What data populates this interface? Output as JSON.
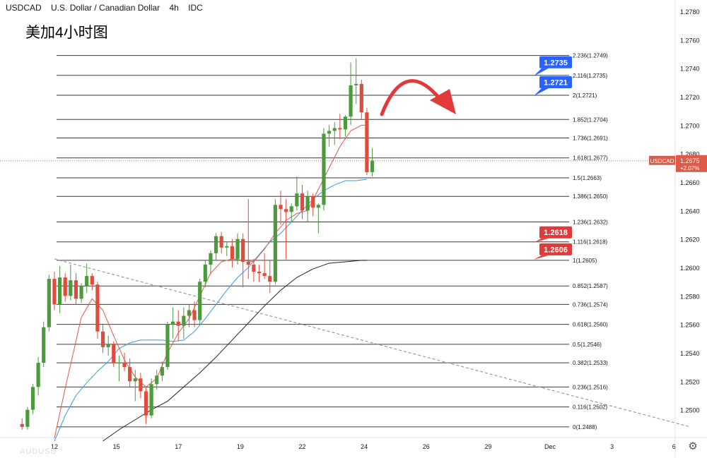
{
  "header": {
    "symbol": "USDCAD",
    "name": "U.S. Dollar / Canadian Dollar",
    "interval": "4h",
    "indicator": "IDC"
  },
  "title_cn": "美加4小时图",
  "watermark": "AUDUSD",
  "settings_icon": "gear-icon",
  "colors": {
    "up": "#4c9a3c",
    "down": "#e04b3c",
    "fib_line": "#3a3a3a",
    "ma_fast": "#e05a4a",
    "ma_mid": "#3b9ae0",
    "ma_slow": "#222222",
    "trend": "#888888",
    "arrow": "#e03a3a",
    "label_blue": "#2962ff",
    "label_red": "#e03a3a",
    "current_price": "#e05a4a"
  },
  "chart_data": {
    "type": "candlestick",
    "title": "USDCAD U.S. Dollar / Canadian Dollar 4h IDC",
    "ylim": [
      1.2478,
      1.2784
    ],
    "y_ticks": [
      1.278,
      1.276,
      1.274,
      1.272,
      1.27,
      1.268,
      1.266,
      1.264,
      1.262,
      1.26,
      1.258,
      1.256,
      1.254,
      1.252,
      1.25
    ],
    "y_tick_labels": [
      "1.2780",
      "1.2760",
      "1.2740",
      "1.2720",
      "1.2700",
      "1.2680",
      "1.2660",
      "1.2640",
      "1.2620",
      "1.2600",
      "1.2580",
      "1.2560",
      "1.2540",
      "1.2520",
      "1.2500"
    ],
    "x_labels": [
      "12",
      "15",
      "17",
      "19",
      "22",
      "24",
      "26",
      "29",
      "Dec",
      "3",
      "6"
    ],
    "x_label_slots": [
      8,
      19.5,
      31,
      42.5,
      54,
      65.5,
      77,
      88.5,
      100,
      111.5,
      123
    ],
    "slots_total": 130,
    "candles": [
      [
        1.249,
        1.2494,
        1.2486,
        1.2488
      ],
      [
        1.2488,
        1.2502,
        1.2486,
        1.25
      ],
      [
        1.25,
        1.2518,
        1.2497,
        1.2516
      ],
      [
        1.2516,
        1.2537,
        1.251,
        1.2533
      ],
      [
        1.2533,
        1.2562,
        1.253,
        1.2558
      ],
      [
        1.2558,
        1.2595,
        1.2555,
        1.2592
      ],
      [
        1.2592,
        1.2597,
        1.257,
        1.2574
      ],
      [
        1.2574,
        1.2601,
        1.2568,
        1.2593
      ],
      [
        1.2593,
        1.2596,
        1.2576,
        1.258
      ],
      [
        1.258,
        1.2602,
        1.2577,
        1.2591
      ],
      [
        1.2591,
        1.2596,
        1.2574,
        1.2578
      ],
      [
        1.2578,
        1.2589,
        1.2575,
        1.2587
      ],
      [
        1.2587,
        1.2603,
        1.2582,
        1.2594
      ],
      [
        1.2594,
        1.2596,
        1.2584,
        1.2588
      ],
      [
        1.2588,
        1.259,
        1.255,
        1.2555
      ],
      [
        1.2555,
        1.256,
        1.254,
        1.2544
      ],
      [
        1.2544,
        1.2552,
        1.2538,
        1.2546
      ],
      [
        1.2546,
        1.2548,
        1.253,
        1.2533
      ],
      [
        1.2533,
        1.2538,
        1.252,
        1.2533
      ],
      [
        1.2533,
        1.254,
        1.2527,
        1.253
      ],
      [
        1.253,
        1.2536,
        1.2516,
        1.252
      ],
      [
        1.252,
        1.2528,
        1.2506,
        1.2522
      ],
      [
        1.2522,
        1.2526,
        1.2508,
        1.2513
      ],
      [
        1.2513,
        1.2516,
        1.249,
        1.2496
      ],
      [
        1.2496,
        1.2522,
        1.2494,
        1.2518
      ],
      [
        1.2518,
        1.2528,
        1.2514,
        1.2524
      ],
      [
        1.2524,
        1.2534,
        1.252,
        1.253
      ],
      [
        1.253,
        1.2562,
        1.2528,
        1.256
      ],
      [
        1.256,
        1.2572,
        1.255,
        1.2562
      ],
      [
        1.2562,
        1.257,
        1.2548,
        1.2559
      ],
      [
        1.2559,
        1.2572,
        1.255,
        1.2566
      ],
      [
        1.2566,
        1.2574,
        1.2558,
        1.257
      ],
      [
        1.257,
        1.2576,
        1.2558,
        1.2563
      ],
      [
        1.2563,
        1.2592,
        1.256,
        1.259
      ],
      [
        1.259,
        1.2605,
        1.2586,
        1.2602
      ],
      [
        1.2602,
        1.2612,
        1.2595,
        1.261
      ],
      [
        1.261,
        1.2624,
        1.2605,
        1.2622
      ],
      [
        1.2622,
        1.2625,
        1.261,
        1.2614
      ],
      [
        1.2614,
        1.2618,
        1.2608,
        1.2615
      ],
      [
        1.2615,
        1.262,
        1.26,
        1.2606
      ],
      [
        1.2606,
        1.2624,
        1.2602,
        1.262
      ],
      [
        1.262,
        1.2624,
        1.2586,
        1.2604
      ],
      [
        1.2604,
        1.2648,
        1.2592,
        1.2602
      ],
      [
        1.2602,
        1.2606,
        1.259,
        1.2597
      ],
      [
        1.2597,
        1.2602,
        1.259,
        1.2596
      ],
      [
        1.2596,
        1.261,
        1.2592,
        1.2594
      ],
      [
        1.2594,
        1.2605,
        1.2582,
        1.259
      ],
      [
        1.259,
        1.2648,
        1.2588,
        1.2644
      ],
      [
        1.2644,
        1.2654,
        1.263,
        1.2641
      ],
      [
        1.2641,
        1.2648,
        1.2606,
        1.2639
      ],
      [
        1.2639,
        1.2645,
        1.2632,
        1.2643
      ],
      [
        1.2643,
        1.2664,
        1.264,
        1.2652
      ],
      [
        1.2652,
        1.2658,
        1.2634,
        1.264
      ],
      [
        1.264,
        1.2654,
        1.2632,
        1.265
      ],
      [
        1.265,
        1.2652,
        1.2636,
        1.2642
      ],
      [
        1.2642,
        1.2645,
        1.2624,
        1.2644
      ],
      [
        1.2644,
        1.2698,
        1.264,
        1.2694
      ],
      [
        1.2694,
        1.27,
        1.2685,
        1.2696
      ],
      [
        1.2696,
        1.2702,
        1.2686,
        1.2698
      ],
      [
        1.2698,
        1.2708,
        1.269,
        1.2697
      ],
      [
        1.2697,
        1.2707,
        1.2692,
        1.2706
      ],
      [
        1.2706,
        1.2744,
        1.27,
        1.2728
      ],
      [
        1.2728,
        1.2747,
        1.2715,
        1.2729
      ],
      [
        1.2729,
        1.2732,
        1.2704,
        1.2709
      ],
      [
        1.2709,
        1.2712,
        1.2665,
        1.2667
      ],
      [
        1.2667,
        1.2684,
        1.2664,
        1.2675
      ]
    ],
    "ma_fast": [
      [
        8,
        1.248
      ],
      [
        10,
        1.2515
      ],
      [
        13,
        1.2565
      ],
      [
        15,
        1.2578
      ],
      [
        17,
        1.257
      ],
      [
        19,
        1.2552
      ],
      [
        21,
        1.2535
      ],
      [
        23,
        1.2523
      ],
      [
        25,
        1.2516
      ],
      [
        27,
        1.2522
      ],
      [
        29,
        1.254
      ],
      [
        31,
        1.2554
      ],
      [
        33,
        1.2564
      ],
      [
        35,
        1.258
      ],
      [
        37,
        1.2596
      ],
      [
        39,
        1.2604
      ],
      [
        41,
        1.2606
      ],
      [
        43,
        1.2605
      ],
      [
        45,
        1.2604
      ],
      [
        47,
        1.2613
      ],
      [
        49,
        1.2624
      ],
      [
        51,
        1.2633
      ],
      [
        53,
        1.2638
      ],
      [
        55,
        1.264
      ],
      [
        57,
        1.2655
      ],
      [
        59,
        1.267
      ],
      [
        61,
        1.2685
      ],
      [
        63,
        1.2696
      ],
      [
        65,
        1.27
      ],
      [
        66,
        1.27
      ]
    ],
    "ma_mid": [
      [
        8,
        1.2478
      ],
      [
        10,
        1.2496
      ],
      [
        12,
        1.251
      ],
      [
        14,
        1.2519
      ],
      [
        16,
        1.2527
      ],
      [
        18,
        1.2534
      ],
      [
        20,
        1.2543
      ],
      [
        22,
        1.2547
      ],
      [
        24,
        1.2549
      ],
      [
        26,
        1.2549
      ],
      [
        28,
        1.2549
      ],
      [
        30,
        1.2548
      ],
      [
        32,
        1.2549
      ],
      [
        34,
        1.2555
      ],
      [
        36,
        1.2564
      ],
      [
        38,
        1.2574
      ],
      [
        40,
        1.2584
      ],
      [
        42,
        1.2593
      ],
      [
        44,
        1.26
      ],
      [
        46,
        1.2609
      ],
      [
        48,
        1.2618
      ],
      [
        50,
        1.2624
      ],
      [
        52,
        1.2632
      ],
      [
        54,
        1.264
      ],
      [
        56,
        1.2648
      ],
      [
        58,
        1.2654
      ],
      [
        60,
        1.2658
      ],
      [
        62,
        1.2661
      ],
      [
        64,
        1.2661
      ],
      [
        66,
        1.2662
      ]
    ],
    "ma_slow": [
      [
        17,
        1.2478
      ],
      [
        20,
        1.2486
      ],
      [
        23,
        1.2493
      ],
      [
        26,
        1.25
      ],
      [
        29,
        1.2506
      ],
      [
        32,
        1.2516
      ],
      [
        35,
        1.2526
      ],
      [
        38,
        1.2537
      ],
      [
        41,
        1.2549
      ],
      [
        44,
        1.2561
      ],
      [
        47,
        1.2573
      ],
      [
        50,
        1.2584
      ],
      [
        53,
        1.2593
      ],
      [
        56,
        1.2599
      ],
      [
        59,
        1.2603
      ],
      [
        62,
        1.2604
      ],
      [
        65,
        1.2605
      ],
      [
        66,
        1.2605
      ]
    ],
    "trendline": [
      [
        8,
        1.2606
      ],
      [
        126,
        1.2488
      ]
    ],
    "fib_levels": [
      {
        "ratio": "2.236",
        "price": 1.2749
      },
      {
        "ratio": "2.116",
        "price": 1.2735
      },
      {
        "ratio": "2",
        "price": 1.2721
      },
      {
        "ratio": "1.852",
        "price": 1.2704
      },
      {
        "ratio": "1.736",
        "price": 1.2691
      },
      {
        "ratio": "1.618",
        "price": 1.2677
      },
      {
        "ratio": "1.5",
        "price": 1.2663
      },
      {
        "ratio": "1.386",
        "price": 1.265
      },
      {
        "ratio": "1.236",
        "price": 1.2632
      },
      {
        "ratio": "1.116",
        "price": 1.2618
      },
      {
        "ratio": "1",
        "price": 1.2605
      },
      {
        "ratio": "0.852",
        "price": 1.2587
      },
      {
        "ratio": "0.736",
        "price": 1.2574
      },
      {
        "ratio": "0.618",
        "price": 1.256
      },
      {
        "ratio": "0.5",
        "price": 1.2546
      },
      {
        "ratio": "0.382",
        "price": 1.2533
      },
      {
        "ratio": "0.236",
        "price": 1.2516
      },
      {
        "ratio": "0.116",
        "price": 1.2502
      },
      {
        "ratio": "0",
        "price": 1.2488
      }
    ],
    "fib_labels": [
      "2.236(1.2749)",
      "2.116(1.2735)",
      "2(1.2721)",
      "1.852(1.2704)",
      "1.736(1.2691)",
      "1.618(1.2677)",
      "1.5(1.2663)",
      "1.386(1.2650)",
      "1.236(1.2632)",
      "1.116(1.2618)",
      "1(1.2605)",
      "0.852(1.2587)",
      "0.736(1.2574)",
      "0.618(1.2560)",
      "0.5(1.2546)",
      "0.382(1.2533)",
      "0.236(1.2516)",
      "0.116(1.2502)",
      "0(1.2488)"
    ],
    "callouts": [
      {
        "text": "1.2735",
        "price": 1.2735,
        "color": "blue"
      },
      {
        "text": "1.2721",
        "price": 1.2721,
        "color": "blue"
      },
      {
        "text": "1.2618",
        "price": 1.2618,
        "color": "red"
      },
      {
        "text": "1.2606",
        "price": 1.2606,
        "color": "red"
      }
    ],
    "current_price": {
      "symbol": "USDCAD",
      "value": 1.2675,
      "value_label": "1.2675",
      "change_label": "+2.07%"
    },
    "annotation": "curved arrow pointing down (expected reversal from 1.2735 resistance)"
  }
}
